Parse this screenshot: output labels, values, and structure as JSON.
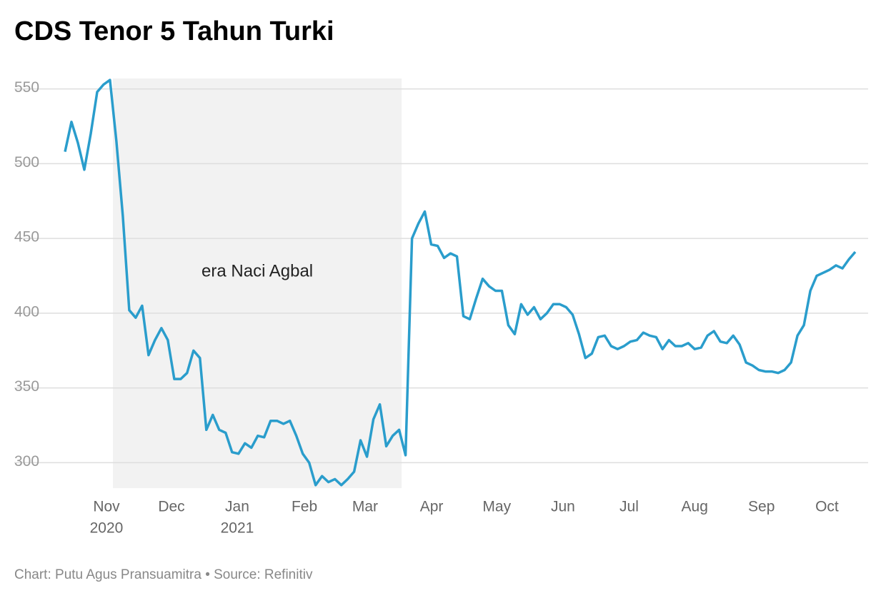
{
  "chart_data": {
    "type": "line",
    "title": "CDS Tenor 5 Tahun Turki",
    "footer": "Chart: Putu Agus Pransuamitra • Source: Refinitiv",
    "color": "#2a9dcc",
    "grid": true,
    "shade": {
      "x": [
        7.45,
        52.4
      ],
      "label": "era Naci Agbal"
    },
    "xlim": [
      0,
      123
    ],
    "ylim": [
      283,
      557
    ],
    "yticks": [
      300,
      350,
      400,
      450,
      500,
      550
    ],
    "xticks": [
      {
        "value": 6.45,
        "label": "Nov",
        "year": "2020"
      },
      {
        "value": 16.57,
        "label": "Dec"
      },
      {
        "value": 26.8,
        "label": "Jan",
        "year": "2021"
      },
      {
        "value": 37.26,
        "label": "Feb"
      },
      {
        "value": 46.7,
        "label": "Mar"
      },
      {
        "value": 57.06,
        "label": "Apr"
      },
      {
        "value": 67.2,
        "label": "May"
      },
      {
        "value": 77.5,
        "label": "Jun"
      },
      {
        "value": 87.8,
        "label": "Jul"
      },
      {
        "value": 98,
        "label": "Aug"
      },
      {
        "value": 108.4,
        "label": "Sep"
      },
      {
        "value": 118.6,
        "label": "Oct"
      }
    ],
    "values": [
      508,
      528,
      514,
      496,
      520,
      548,
      553,
      556,
      515,
      465,
      402,
      397,
      405,
      372,
      382,
      390,
      382,
      356,
      356,
      360,
      375,
      370,
      322,
      332,
      322,
      320,
      307,
      306,
      313,
      310,
      318,
      317,
      328,
      328,
      326,
      328,
      318,
      306,
      300,
      285,
      291,
      287,
      289,
      285,
      289,
      294,
      315,
      304,
      329,
      339,
      311,
      318,
      322,
      305,
      450,
      460,
      468,
      446,
      445,
      437,
      440,
      438,
      398,
      396,
      410,
      423,
      418,
      415,
      415,
      392,
      386,
      406,
      399,
      404,
      396,
      400,
      406,
      406,
      404,
      399,
      386,
      370,
      373,
      384,
      385,
      378,
      376,
      378,
      381,
      382,
      387,
      385,
      384,
      376,
      382,
      378,
      378,
      380,
      376,
      377,
      385,
      388,
      381,
      380,
      385,
      379,
      367,
      365,
      362,
      361,
      361,
      360,
      362,
      367,
      385,
      392,
      415,
      425,
      427,
      429,
      432,
      430,
      436,
      441
    ]
  }
}
